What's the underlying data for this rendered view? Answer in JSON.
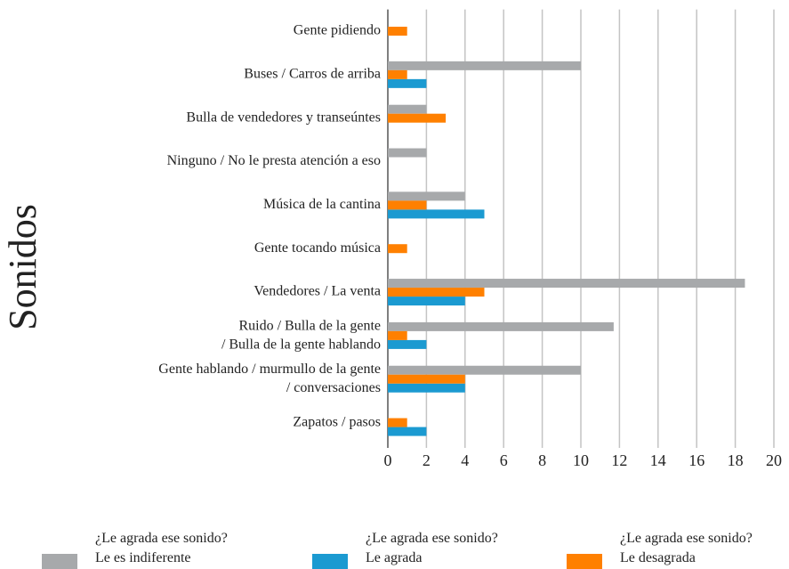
{
  "chart_data": {
    "type": "bar",
    "orientation": "horizontal",
    "ylabel": "Sonidos",
    "categories": [
      "Gente pidiendo",
      "Buses / Carros de arriba",
      "Bulla de vendedores y transeúntes",
      "Ninguno / No le presta atención a eso",
      "Música de la cantina",
      "Gente tocando música",
      "Vendedores / La venta",
      "Ruido / Bulla de la gente\n/ Bulla de la gente hablando",
      "Gente hablando / murmullo de la gente\n/ conversaciones",
      "Zapatos / pasos"
    ],
    "series": [
      {
        "name": "¿Le agrada ese sonido?\nLe es indiferente",
        "color": "#a7a9ab",
        "values": [
          0,
          10,
          2,
          2,
          4,
          0,
          18.5,
          11.7,
          10,
          0
        ]
      },
      {
        "name": "¿Le agrada ese sonido?\nLe agrada",
        "color": "#1b9ad1",
        "values": [
          0,
          2,
          0,
          0,
          5,
          0,
          4,
          2,
          4,
          2
        ]
      },
      {
        "name": "¿Le agrada ese sonido?\nLe desagrada",
        "color": "#ff8000",
        "values": [
          1,
          1,
          3,
          0,
          2,
          1,
          5,
          1,
          4,
          1
        ]
      }
    ],
    "xlim": [
      0,
      20
    ],
    "xticks": [
      0,
      2,
      4,
      6,
      8,
      10,
      12,
      14,
      16,
      18,
      20
    ],
    "grid": true
  }
}
